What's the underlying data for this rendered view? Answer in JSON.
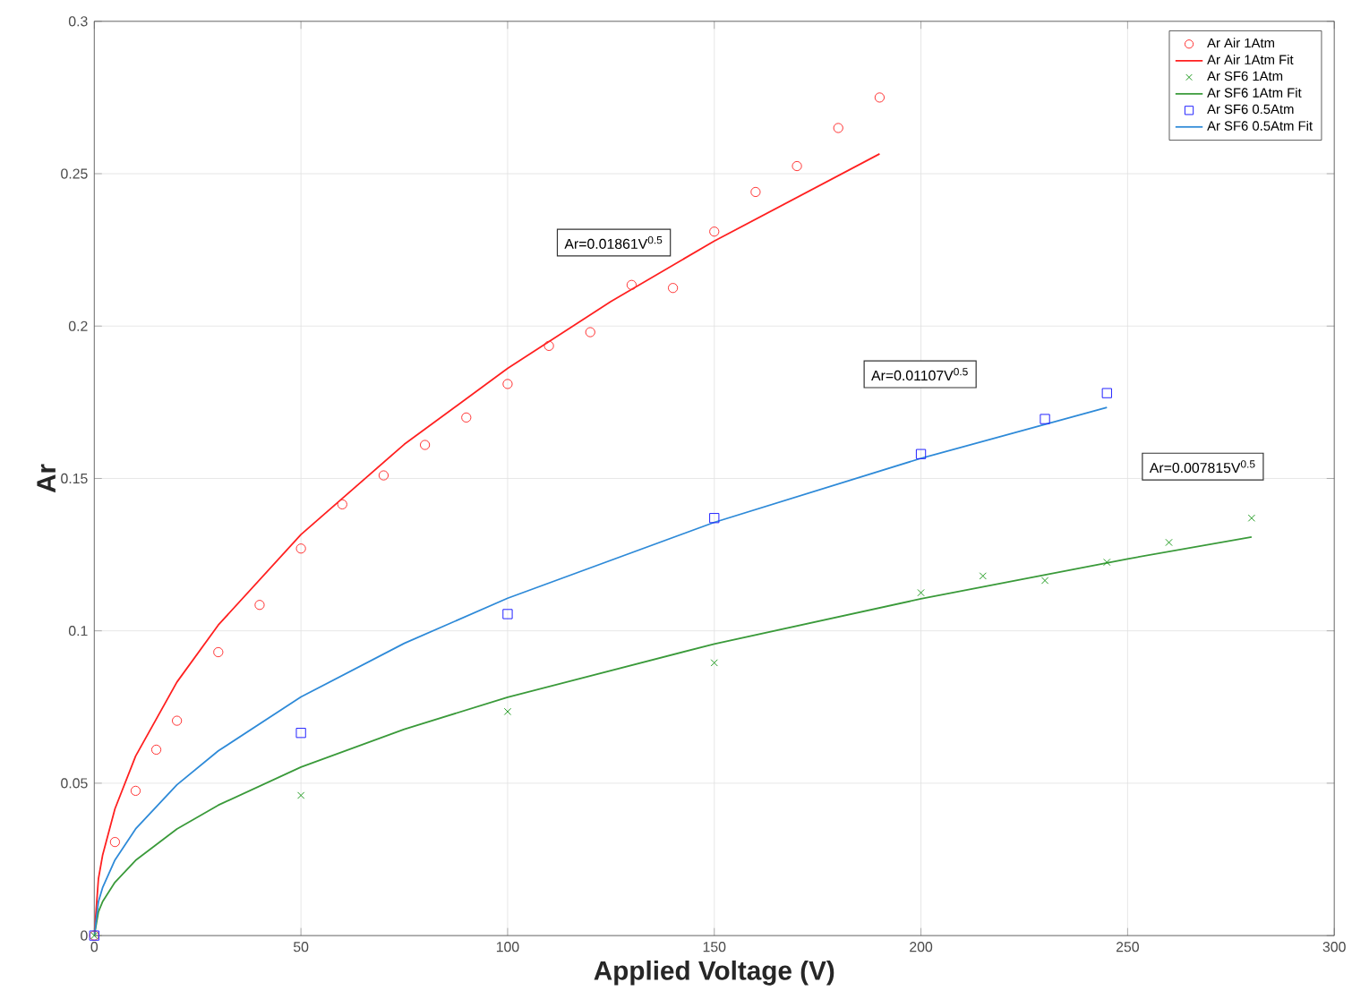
{
  "chart_data": {
    "type": "scatter",
    "xlabel": "Applied Voltage (V)",
    "ylabel": "Ar",
    "xlim": [
      0,
      300
    ],
    "ylim": [
      0,
      0.3
    ],
    "xticks": [
      0,
      50,
      100,
      150,
      200,
      250,
      300
    ],
    "yticks": [
      0,
      0.05,
      0.1,
      0.15,
      0.2,
      0.25,
      0.3
    ],
    "grid": true,
    "legend": "top right",
    "series": [
      {
        "name": "Ar Air 1Atm",
        "marker": "circle",
        "color": "#ff3333",
        "x": [
          0,
          5,
          10,
          15,
          20,
          30,
          40,
          50,
          60,
          70,
          80,
          90,
          100,
          110,
          120,
          130,
          140,
          150,
          160,
          170,
          180,
          190
        ],
        "values": [
          0,
          0.0307,
          0.0475,
          0.061,
          0.0705,
          0.093,
          0.1085,
          0.127,
          0.1415,
          0.151,
          0.161,
          0.17,
          0.181,
          0.1935,
          0.198,
          0.2135,
          0.2125,
          0.231,
          0.244,
          0.2525,
          0.265,
          0.275
        ]
      },
      {
        "name": "Ar Air 1Atm Fit",
        "type": "line",
        "marker": "none",
        "color": "#ff2020",
        "x": [
          0,
          1,
          2,
          5,
          10,
          20,
          30,
          50,
          75,
          100,
          125,
          150,
          190
        ],
        "values": [
          0,
          0.0186,
          0.0263,
          0.0416,
          0.0589,
          0.0832,
          0.1019,
          0.1316,
          0.1612,
          0.1861,
          0.2081,
          0.2279,
          0.2565
        ]
      },
      {
        "name": "Ar SF6 1Atm",
        "marker": "cross",
        "color": "#1f9a1f",
        "x": [
          0,
          50,
          100,
          150,
          200,
          215,
          230,
          245,
          260,
          280
        ],
        "values": [
          0,
          0.046,
          0.0735,
          0.0895,
          0.1125,
          0.118,
          0.1165,
          0.1225,
          0.129,
          0.137
        ]
      },
      {
        "name": "Ar SF6 1Atm Fit",
        "type": "line",
        "marker": "none",
        "color": "#3a9a3a",
        "x": [
          0,
          1,
          2,
          5,
          10,
          20,
          30,
          50,
          75,
          100,
          150,
          200,
          250,
          280
        ],
        "values": [
          0,
          0.0078,
          0.0111,
          0.0175,
          0.0247,
          0.035,
          0.0428,
          0.0553,
          0.0677,
          0.0782,
          0.0957,
          0.1105,
          0.1236,
          0.1308
        ]
      },
      {
        "name": "Ar SF6 0.5Atm",
        "marker": "square",
        "color": "#2020ff",
        "x": [
          0,
          50,
          100,
          150,
          200,
          230,
          245
        ],
        "values": [
          0,
          0.0665,
          0.1055,
          0.137,
          0.158,
          0.1695,
          0.178
        ]
      },
      {
        "name": "Ar SF6 0.5Atm Fit",
        "type": "line",
        "marker": "none",
        "color": "#2e8ad8",
        "x": [
          0,
          1,
          2,
          5,
          10,
          20,
          30,
          50,
          75,
          100,
          150,
          200,
          245
        ],
        "values": [
          0,
          0.0111,
          0.0157,
          0.0248,
          0.035,
          0.0495,
          0.0606,
          0.0783,
          0.0959,
          0.1107,
          0.1356,
          0.1566,
          0.1733
        ]
      }
    ],
    "annotations": [
      "Ar=0.01861V$^{0.5}$",
      "Ar=0.01107V$^{0.5}$",
      "Ar=0.007815V$^{0.5}$"
    ]
  }
}
